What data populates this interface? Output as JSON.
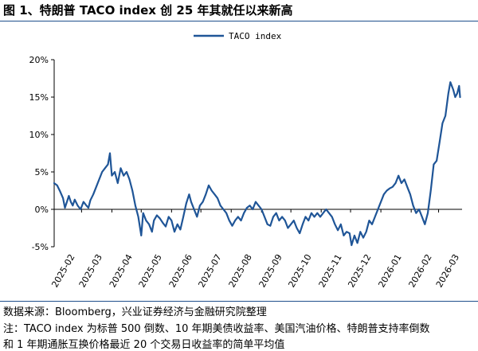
{
  "figure": {
    "title": "图 1、特朗普 TACO index 创 25 年其就任以来新高",
    "source": "数据来源：Bloomberg，兴业证券经济与金融研究院整理",
    "note_line1": "注：TACO index 为标普 500 倒数、10 年期美债收益率、美国汽油价格、特朗普支持率倒数",
    "note_line2": "和 1 年期通胀互换价格最近 20 个交易日收益率的简单平均值"
  },
  "chart_data": {
    "type": "line",
    "title": "",
    "xlabel": "",
    "ylabel": "",
    "ylim": [
      -5,
      20
    ],
    "y_ticks": [
      -5,
      0,
      5,
      10,
      15,
      20
    ],
    "y_tick_labels": [
      "-5%",
      "0%",
      "5%",
      "10%",
      "15%",
      "20%"
    ],
    "y_unit": "%",
    "x_range": [
      "2025-02-01",
      "2026-03-25"
    ],
    "x_tick_labels": [
      "2025-02",
      "2025-03",
      "2025-04",
      "2025-05",
      "2025-06",
      "2025-07",
      "2025-08",
      "2025-09",
      "2025-10",
      "2025-11",
      "2025-12",
      "2026-01",
      "2026-02",
      "2026-03"
    ],
    "legend_position": "top-center",
    "grid": false,
    "line_color": "#1f5597",
    "series": [
      {
        "name": "TACO index",
        "points": [
          [
            "2025-02-01",
            3.5
          ],
          [
            "2025-02-04",
            3.2
          ],
          [
            "2025-02-07",
            2.4
          ],
          [
            "2025-02-10",
            1.5
          ],
          [
            "2025-02-12",
            0.2
          ],
          [
            "2025-02-14",
            1.0
          ],
          [
            "2025-02-16",
            1.8
          ],
          [
            "2025-02-18",
            1.0
          ],
          [
            "2025-02-20",
            0.5
          ],
          [
            "2025-02-22",
            1.3
          ],
          [
            "2025-02-25",
            0.5
          ],
          [
            "2025-02-28",
            0.0
          ],
          [
            "2025-03-03",
            1.0
          ],
          [
            "2025-03-06",
            0.5
          ],
          [
            "2025-03-08",
            0.2
          ],
          [
            "2025-03-10",
            1.2
          ],
          [
            "2025-03-13",
            2.0
          ],
          [
            "2025-03-16",
            3.0
          ],
          [
            "2025-03-19",
            4.0
          ],
          [
            "2025-03-22",
            5.0
          ],
          [
            "2025-03-25",
            5.5
          ],
          [
            "2025-03-28",
            6.0
          ],
          [
            "2025-03-30",
            7.5
          ],
          [
            "2025-04-01",
            4.5
          ],
          [
            "2025-04-04",
            5.0
          ],
          [
            "2025-04-07",
            3.5
          ],
          [
            "2025-04-10",
            5.5
          ],
          [
            "2025-04-13",
            4.5
          ],
          [
            "2025-04-16",
            5.0
          ],
          [
            "2025-04-19",
            4.0
          ],
          [
            "2025-04-22",
            2.5
          ],
          [
            "2025-04-25",
            0.5
          ],
          [
            "2025-04-28",
            -1.0
          ],
          [
            "2025-05-01",
            -3.5
          ],
          [
            "2025-05-03",
            -0.5
          ],
          [
            "2025-05-06",
            -1.5
          ],
          [
            "2025-05-09",
            -2.0
          ],
          [
            "2025-05-12",
            -3.0
          ],
          [
            "2025-05-14",
            -1.5
          ],
          [
            "2025-05-17",
            -0.8
          ],
          [
            "2025-05-20",
            -1.2
          ],
          [
            "2025-05-23",
            -1.8
          ],
          [
            "2025-05-26",
            -2.3
          ],
          [
            "2025-05-29",
            -1.0
          ],
          [
            "2025-06-01",
            -1.5
          ],
          [
            "2025-06-04",
            -3.0
          ],
          [
            "2025-06-07",
            -2.0
          ],
          [
            "2025-06-10",
            -2.7
          ],
          [
            "2025-06-13",
            -1.0
          ],
          [
            "2025-06-16",
            0.8
          ],
          [
            "2025-06-19",
            2.0
          ],
          [
            "2025-06-21",
            1.0
          ],
          [
            "2025-06-24",
            0.0
          ],
          [
            "2025-06-27",
            -1.0
          ],
          [
            "2025-06-30",
            0.5
          ],
          [
            "2025-07-03",
            1.0
          ],
          [
            "2025-07-06",
            2.0
          ],
          [
            "2025-07-09",
            3.2
          ],
          [
            "2025-07-12",
            2.5
          ],
          [
            "2025-07-15",
            2.0
          ],
          [
            "2025-07-18",
            1.5
          ],
          [
            "2025-07-21",
            0.5
          ],
          [
            "2025-07-24",
            0.0
          ],
          [
            "2025-07-27",
            -0.5
          ],
          [
            "2025-07-30",
            -1.5
          ],
          [
            "2025-08-02",
            -2.2
          ],
          [
            "2025-08-05",
            -1.5
          ],
          [
            "2025-08-08",
            -1.0
          ],
          [
            "2025-08-11",
            -1.5
          ],
          [
            "2025-08-14",
            -0.5
          ],
          [
            "2025-08-17",
            0.2
          ],
          [
            "2025-08-20",
            0.5
          ],
          [
            "2025-08-23",
            0.0
          ],
          [
            "2025-08-26",
            1.0
          ],
          [
            "2025-08-29",
            0.5
          ],
          [
            "2025-09-01",
            0.0
          ],
          [
            "2025-09-04",
            -1.0
          ],
          [
            "2025-09-07",
            -2.0
          ],
          [
            "2025-09-10",
            -2.2
          ],
          [
            "2025-09-13",
            -1.0
          ],
          [
            "2025-09-16",
            -0.5
          ],
          [
            "2025-09-19",
            -1.5
          ],
          [
            "2025-09-22",
            -1.0
          ],
          [
            "2025-09-25",
            -1.5
          ],
          [
            "2025-09-28",
            -2.5
          ],
          [
            "2025-10-01",
            -2.0
          ],
          [
            "2025-10-04",
            -1.5
          ],
          [
            "2025-10-07",
            -2.5
          ],
          [
            "2025-10-10",
            -3.2
          ],
          [
            "2025-10-13",
            -2.0
          ],
          [
            "2025-10-16",
            -1.0
          ],
          [
            "2025-10-19",
            -1.5
          ],
          [
            "2025-10-22",
            -0.5
          ],
          [
            "2025-10-25",
            -1.0
          ],
          [
            "2025-10-28",
            -0.5
          ],
          [
            "2025-10-31",
            -1.0
          ],
          [
            "2025-11-03",
            -0.5
          ],
          [
            "2025-11-06",
            0.0
          ],
          [
            "2025-11-09",
            -0.5
          ],
          [
            "2025-11-12",
            -1.0
          ],
          [
            "2025-11-15",
            -2.0
          ],
          [
            "2025-11-18",
            -2.8
          ],
          [
            "2025-11-21",
            -2.0
          ],
          [
            "2025-11-24",
            -3.5
          ],
          [
            "2025-11-27",
            -3.0
          ],
          [
            "2025-11-30",
            -3.2
          ],
          [
            "2025-12-02",
            -4.8
          ],
          [
            "2025-12-05",
            -3.5
          ],
          [
            "2025-12-08",
            -4.5
          ],
          [
            "2025-12-11",
            -3.0
          ],
          [
            "2025-12-14",
            -3.8
          ],
          [
            "2025-12-17",
            -3.0
          ],
          [
            "2025-12-20",
            -1.5
          ],
          [
            "2025-12-23",
            -2.0
          ],
          [
            "2025-12-26",
            -1.0
          ],
          [
            "2025-12-29",
            0.0
          ],
          [
            "2026-01-01",
            1.0
          ],
          [
            "2026-01-04",
            2.0
          ],
          [
            "2026-01-07",
            2.5
          ],
          [
            "2026-01-10",
            2.8
          ],
          [
            "2026-01-13",
            3.0
          ],
          [
            "2026-01-16",
            3.5
          ],
          [
            "2026-01-19",
            4.5
          ],
          [
            "2026-01-22",
            3.5
          ],
          [
            "2026-01-25",
            4.0
          ],
          [
            "2026-01-28",
            3.0
          ],
          [
            "2026-01-31",
            2.0
          ],
          [
            "2026-02-03",
            0.5
          ],
          [
            "2026-02-06",
            -0.5
          ],
          [
            "2026-02-09",
            0.0
          ],
          [
            "2026-02-12",
            -1.0
          ],
          [
            "2026-02-15",
            -2.0
          ],
          [
            "2026-02-18",
            -0.5
          ],
          [
            "2026-02-21",
            2.5
          ],
          [
            "2026-02-24",
            6.0
          ],
          [
            "2026-02-27",
            6.5
          ],
          [
            "2026-03-02",
            9.0
          ],
          [
            "2026-03-05",
            11.5
          ],
          [
            "2026-03-08",
            12.5
          ],
          [
            "2026-03-11",
            15.5
          ],
          [
            "2026-03-13",
            17.0
          ],
          [
            "2026-03-16",
            16.0
          ],
          [
            "2026-03-18",
            15.0
          ],
          [
            "2026-03-20",
            15.5
          ],
          [
            "2026-03-22",
            16.5
          ],
          [
            "2026-03-23",
            15.0
          ]
        ]
      }
    ]
  }
}
